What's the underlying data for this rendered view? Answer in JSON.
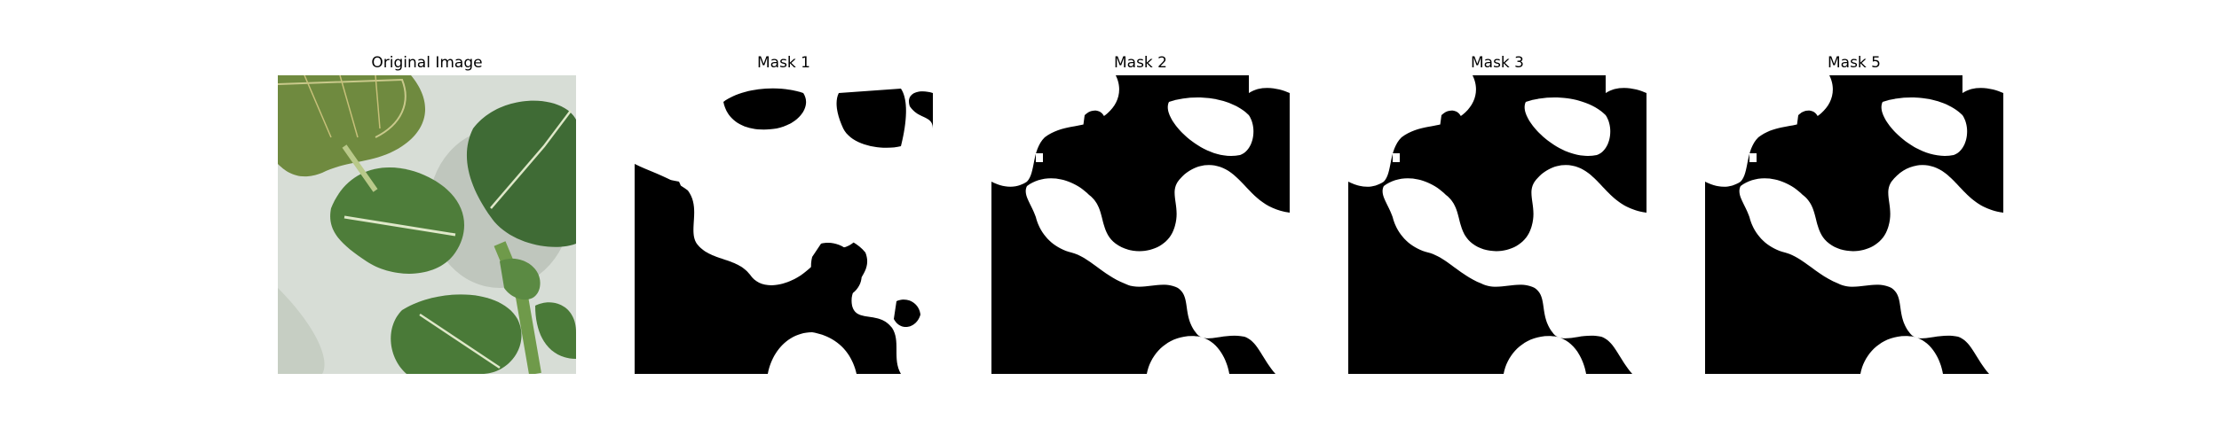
{
  "figure": {
    "panels": [
      {
        "title": "Original Image",
        "kind": "photo",
        "subject": "leafy-green-plant"
      },
      {
        "title": "Mask 1",
        "kind": "mask",
        "variant": "mask-1"
      },
      {
        "title": "Mask 2",
        "kind": "mask",
        "variant": "mask-2"
      },
      {
        "title": "Mask 3",
        "kind": "mask",
        "variant": "mask-3"
      },
      {
        "title": "Mask 5",
        "kind": "mask",
        "variant": "mask-5"
      }
    ]
  },
  "colors": {
    "mask_foreground": "#ffffff",
    "mask_background": "#000000",
    "photo_background": "#d7ddd6",
    "leaf_dark": "#3f6b35",
    "leaf_mid": "#5b8a43",
    "leaf_light": "#8fae6b",
    "vein": "#dfe8c9"
  }
}
